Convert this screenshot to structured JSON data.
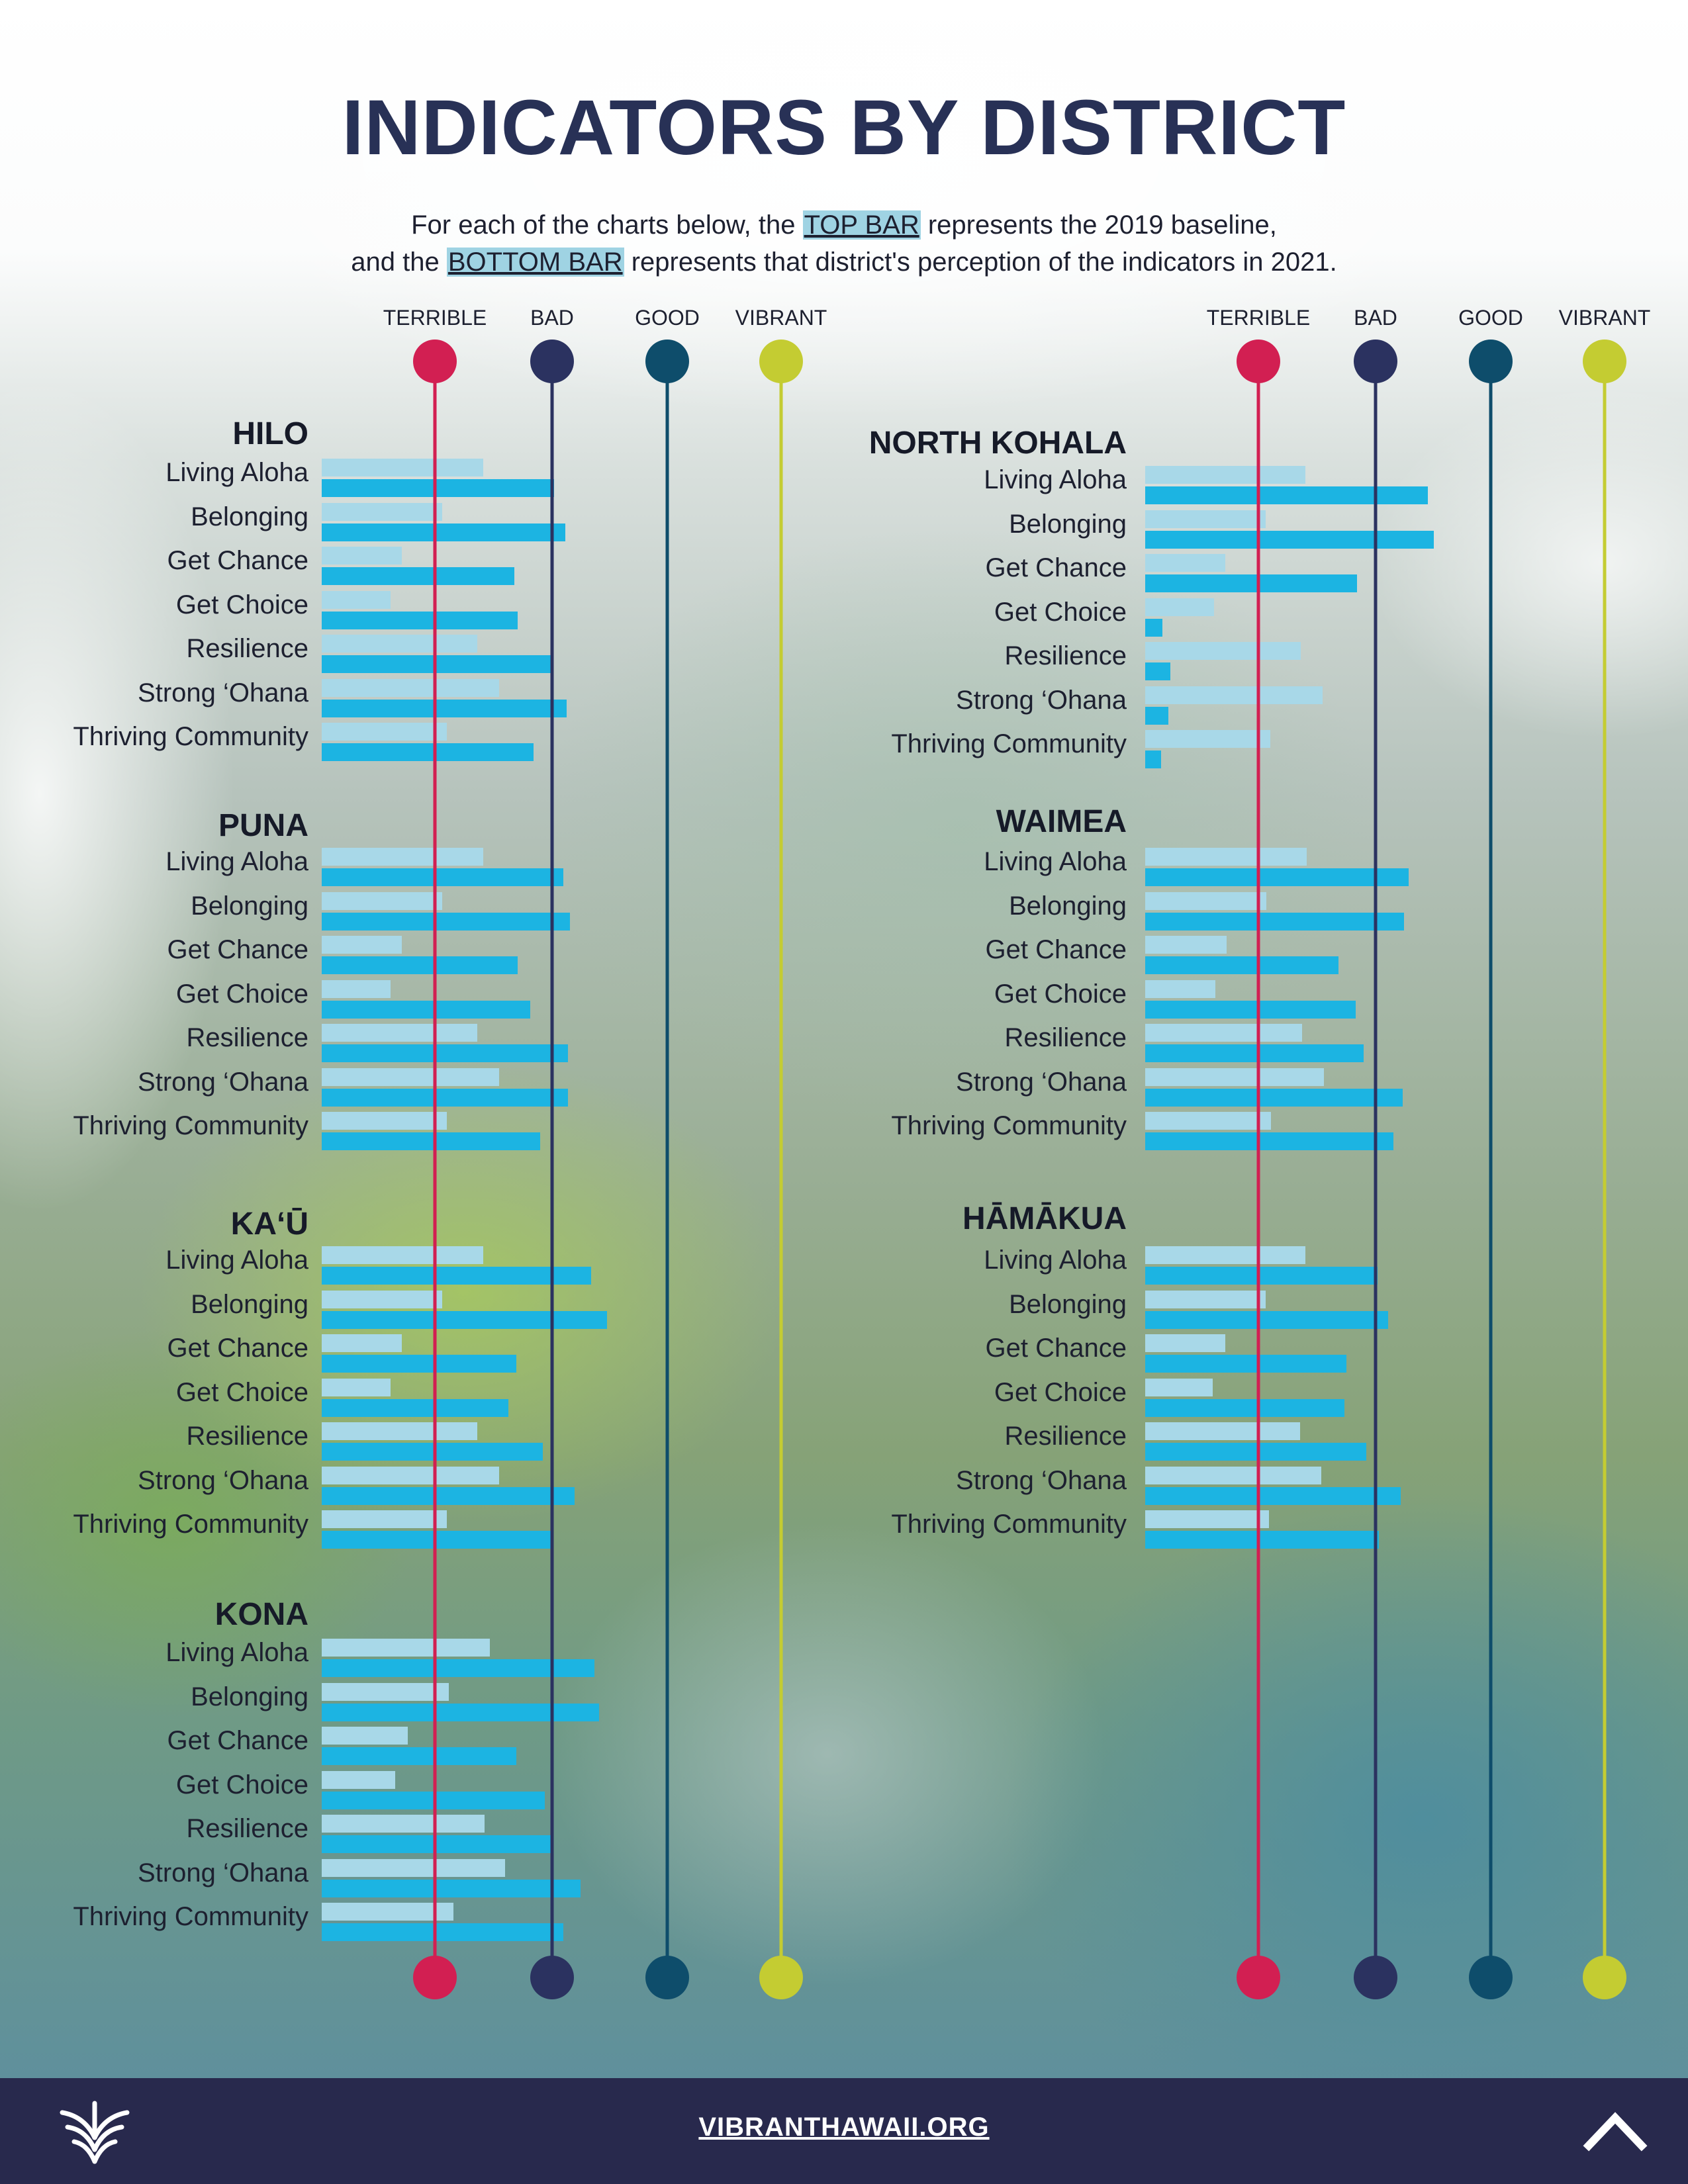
{
  "header": {
    "title": "INDICATORS BY DISTRICT",
    "subtitle_line1_pre": "For each of the charts below, the ",
    "subtitle_line1_highlight": "TOP BAR",
    "subtitle_line1_post": " represents the 2019 baseline,",
    "subtitle_line2_pre": "and the ",
    "subtitle_line2_highlight": "BOTTOM BAR",
    "subtitle_line2_post": " represents that district's perception of the indicators in 2021."
  },
  "footer": {
    "link_text": "VIBRANTHAWAII.ORG",
    "logo_icon": "vibrant-hawaii-logo-icon",
    "back_to_top_icon": "chevron-up-icon"
  },
  "colors": {
    "baseline_bar": "#a8d8e8",
    "current_bar": "#1cb4e2",
    "terrible": "#d21f52",
    "bad": "#2b3260",
    "good": "#0e4d6b",
    "vibrant": "#c4cc32",
    "title": "#283156",
    "footer_bg": "#28294d"
  },
  "chart_data": {
    "type": "bar",
    "orientation": "horizontal",
    "scale_levels": [
      "TERRIBLE",
      "BAD",
      "GOOD",
      "VIBRANT"
    ],
    "scale_min": 0,
    "scale_max": 3,
    "series_names": [
      "2019 baseline",
      "2021"
    ],
    "categories": [
      "Living Aloha",
      "Belonging",
      "Get Chance",
      "Get Choice",
      "Resilience",
      "Strong ‘Ohana",
      "Thriving Community"
    ],
    "districts": [
      {
        "name": "HILO",
        "baseline": [
          1.41,
          1.05,
          0.7,
          0.6,
          1.36,
          1.55,
          1.09
        ],
        "current": [
          2.03,
          2.13,
          1.68,
          1.71,
          2.0,
          2.14,
          1.85
        ]
      },
      {
        "name": "PUNA",
        "baseline": [
          1.41,
          1.05,
          0.7,
          0.6,
          1.36,
          1.55,
          1.09
        ],
        "current": [
          2.11,
          2.17,
          1.71,
          1.82,
          2.15,
          2.15,
          1.91
        ]
      },
      {
        "name": "KA‘Ū",
        "baseline": [
          1.41,
          1.05,
          0.7,
          0.6,
          1.36,
          1.55,
          1.09
        ],
        "current": [
          2.35,
          2.49,
          1.7,
          1.63,
          1.93,
          2.21,
          2.0
        ]
      },
      {
        "name": "KONA",
        "baseline": [
          1.47,
          1.11,
          0.75,
          0.64,
          1.42,
          1.6,
          1.15
        ],
        "current": [
          2.38,
          2.42,
          1.7,
          1.95,
          2.0,
          2.26,
          2.11
        ]
      },
      {
        "name": "NORTH KOHALA",
        "baseline": [
          1.4,
          1.05,
          0.7,
          0.6,
          1.36,
          1.55,
          1.09
        ],
        "current": [
          2.47,
          2.52,
          1.85,
          0.15,
          0.22,
          0.2,
          0.14
        ]
      },
      {
        "name": "WAIMEA",
        "baseline": [
          1.41,
          1.06,
          0.71,
          0.61,
          1.37,
          1.56,
          1.1
        ],
        "current": [
          2.3,
          2.26,
          1.69,
          1.84,
          1.91,
          2.25,
          2.17
        ]
      },
      {
        "name": "HĀMĀKUA",
        "baseline": [
          1.4,
          1.05,
          0.7,
          0.59,
          1.35,
          1.54,
          1.08
        ],
        "current": [
          2.03,
          2.12,
          1.76,
          1.74,
          1.93,
          2.23,
          2.04
        ]
      }
    ]
  }
}
